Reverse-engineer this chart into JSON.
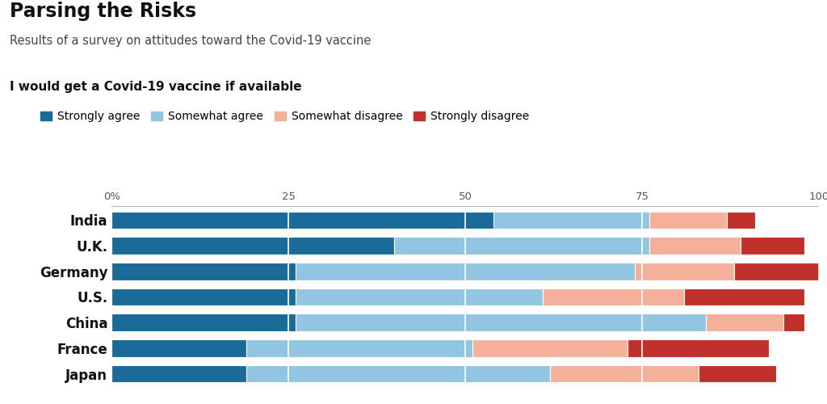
{
  "title": "Parsing the Risks",
  "subtitle": "Results of a survey on attitudes toward the Covid-19 vaccine",
  "question": "I would get a Covid-19 vaccine if available",
  "categories": [
    "India",
    "U.K.",
    "Germany",
    "U.S.",
    "China",
    "France",
    "Japan"
  ],
  "series": {
    "Strongly agree": [
      54,
      40,
      26,
      26,
      26,
      19,
      19
    ],
    "Somewhat agree": [
      22,
      36,
      48,
      35,
      58,
      32,
      43
    ],
    "Somewhat disagree": [
      11,
      13,
      14,
      20,
      11,
      22,
      21
    ],
    "Strongly disagree": [
      4,
      9,
      14,
      17,
      3,
      20,
      11
    ]
  },
  "colors": {
    "Strongly agree": "#1a6b9a",
    "Somewhat agree": "#92c5e0",
    "Somewhat disagree": "#f5b09a",
    "Strongly disagree": "#c0312b"
  },
  "xlim": [
    0,
    100
  ],
  "xticks": [
    0,
    25,
    50,
    75,
    100
  ],
  "xticklabels": [
    "0%",
    "25",
    "50",
    "75",
    "100"
  ],
  "background_color": "#ffffff",
  "bar_height": 0.68,
  "title_fontsize": 17,
  "subtitle_fontsize": 10.5,
  "question_fontsize": 11,
  "legend_fontsize": 10,
  "tick_fontsize": 9.5,
  "category_fontsize": 12
}
